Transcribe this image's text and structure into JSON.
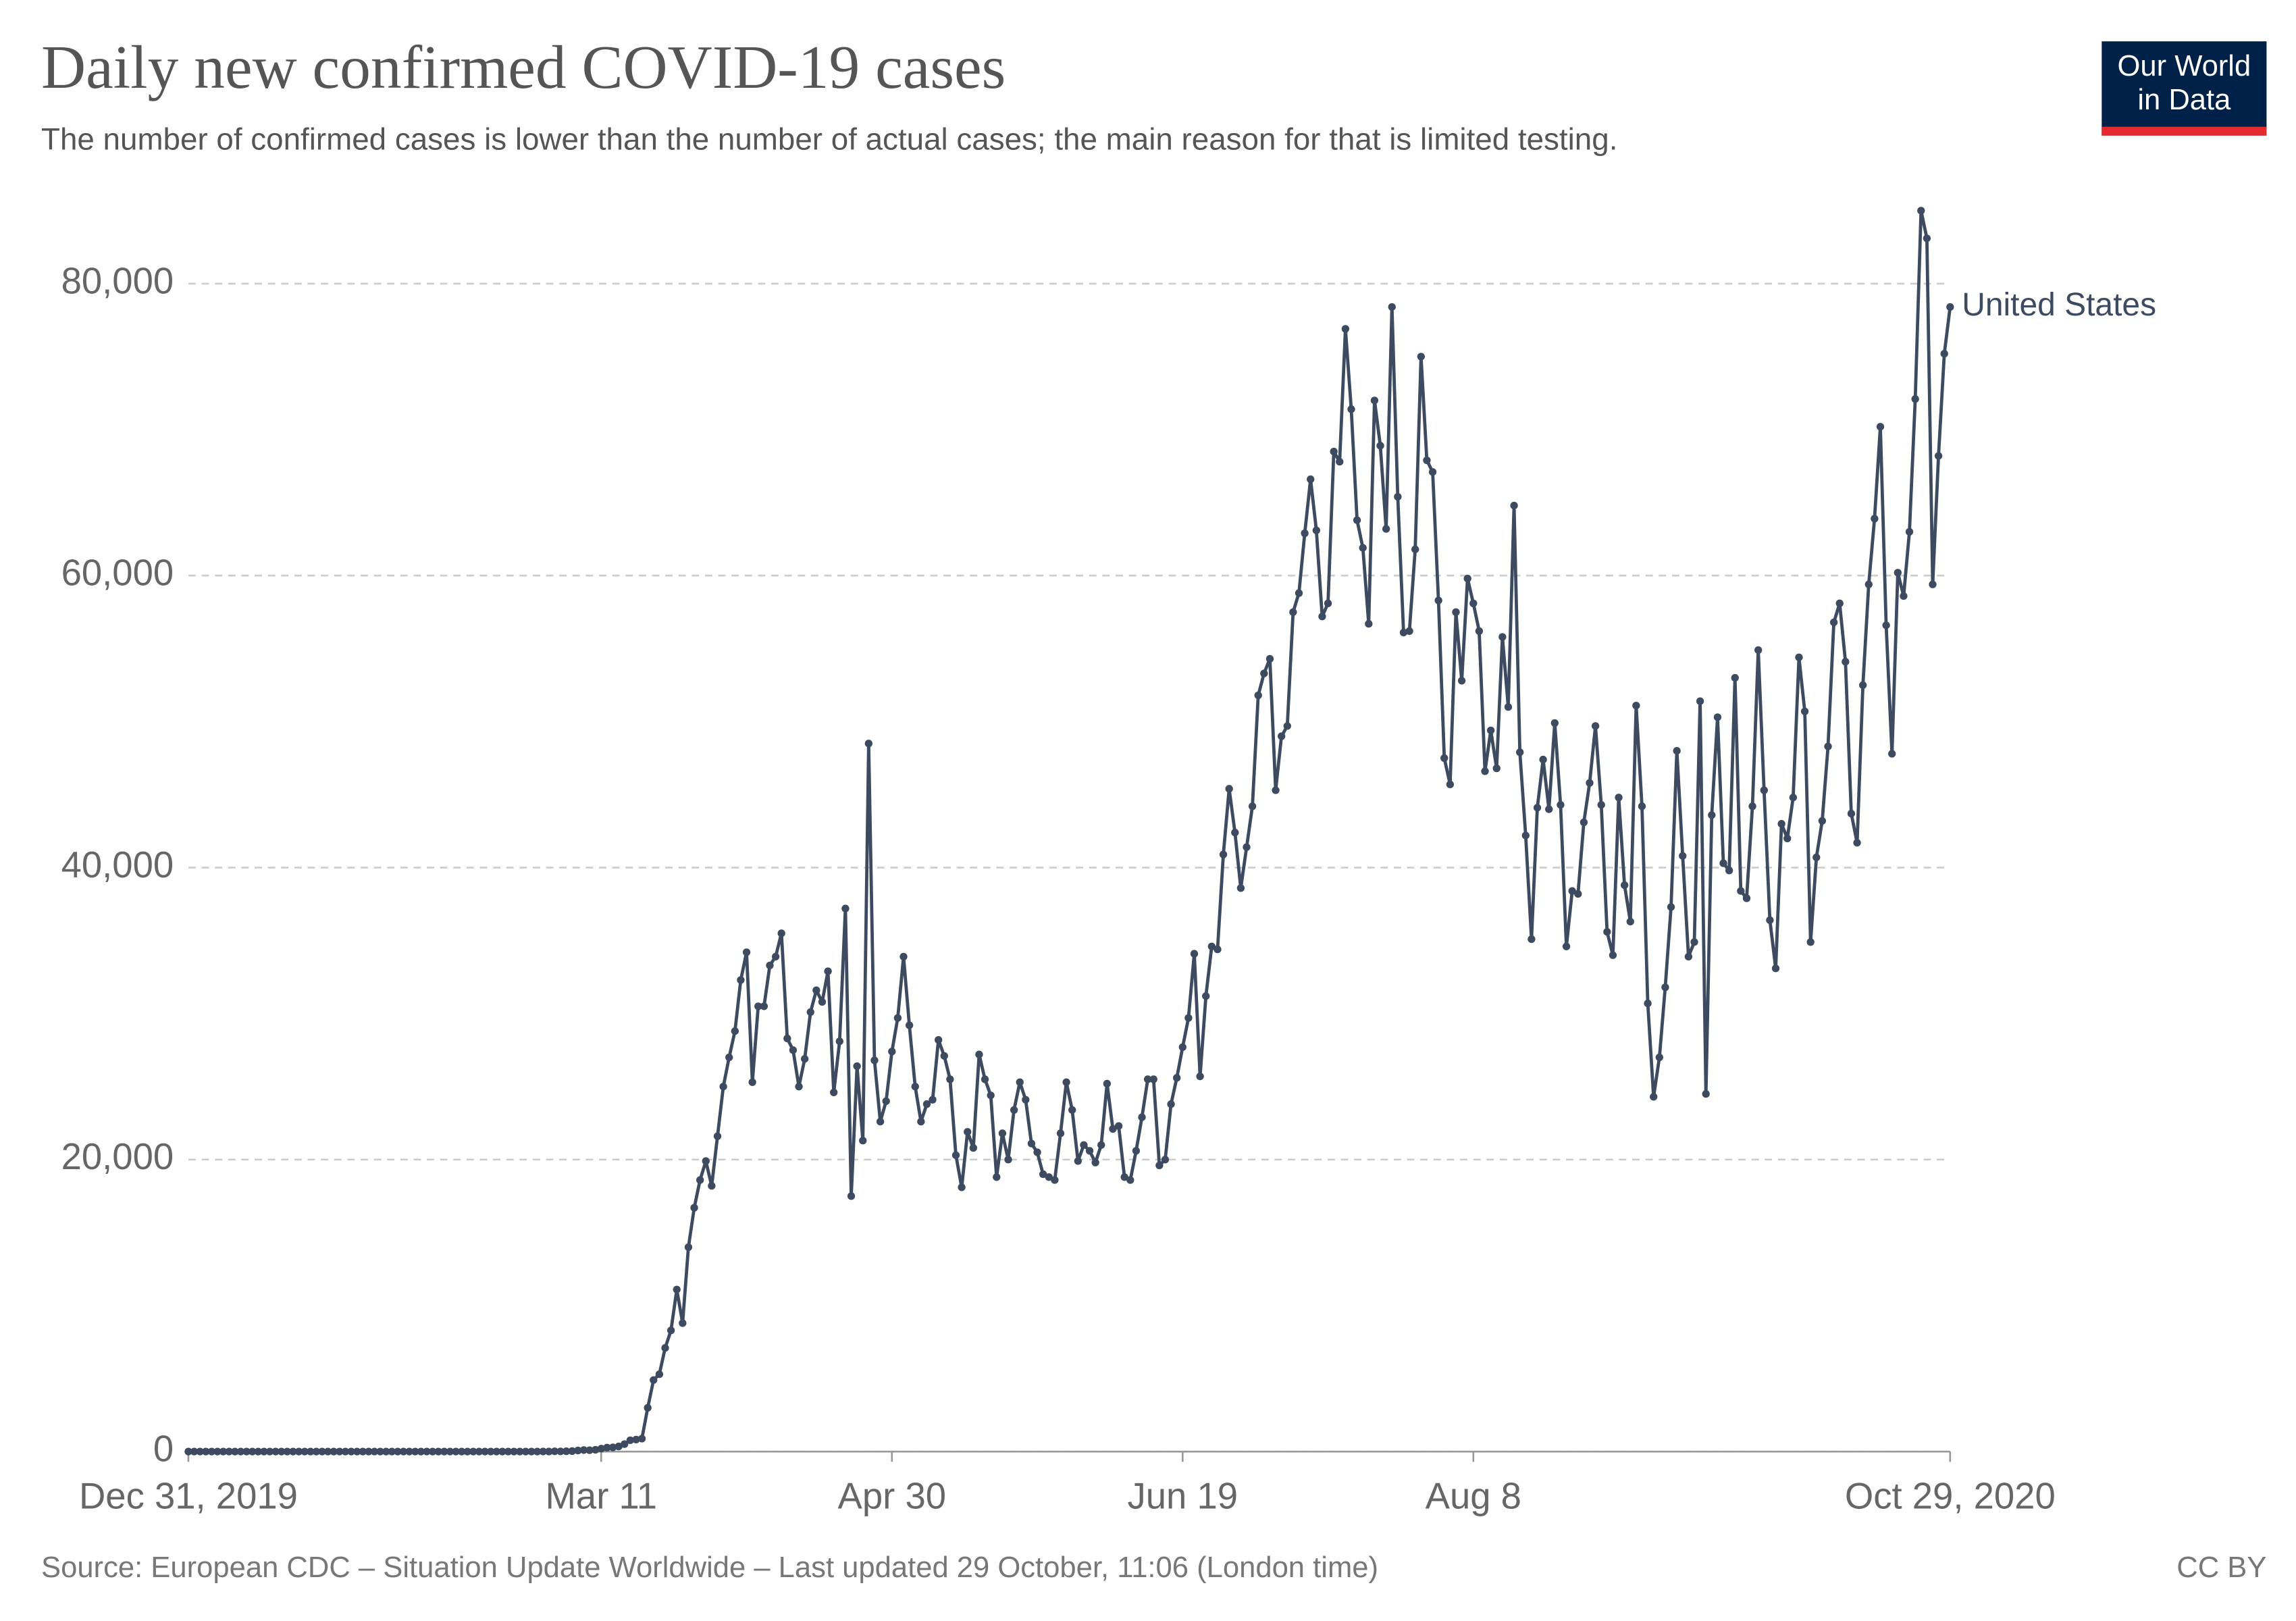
{
  "chart_data": {
    "type": "line",
    "title": "Daily new confirmed COVID-19 cases",
    "subtitle": "The number of confirmed cases is lower than the number of actual cases; the main reason for that is limited testing.",
    "x": [
      "2019-12-31",
      "2020-01-01",
      "2020-01-02",
      "2020-01-03",
      "2020-01-04",
      "2020-01-05",
      "2020-01-06",
      "2020-01-07",
      "2020-01-08",
      "2020-01-09",
      "2020-01-10",
      "2020-01-11",
      "2020-01-12",
      "2020-01-13",
      "2020-01-14",
      "2020-01-15",
      "2020-01-16",
      "2020-01-17",
      "2020-01-18",
      "2020-01-19",
      "2020-01-20",
      "2020-01-21",
      "2020-01-22",
      "2020-01-23",
      "2020-01-24",
      "2020-01-25",
      "2020-01-26",
      "2020-01-27",
      "2020-01-28",
      "2020-01-29",
      "2020-01-30",
      "2020-01-31",
      "2020-02-01",
      "2020-02-02",
      "2020-02-03",
      "2020-02-04",
      "2020-02-05",
      "2020-02-06",
      "2020-02-07",
      "2020-02-08",
      "2020-02-09",
      "2020-02-10",
      "2020-02-11",
      "2020-02-12",
      "2020-02-13",
      "2020-02-14",
      "2020-02-15",
      "2020-02-16",
      "2020-02-17",
      "2020-02-18",
      "2020-02-19",
      "2020-02-20",
      "2020-02-21",
      "2020-02-22",
      "2020-02-23",
      "2020-02-24",
      "2020-02-25",
      "2020-02-26",
      "2020-02-27",
      "2020-02-28",
      "2020-02-29",
      "2020-03-01",
      "2020-03-02",
      "2020-03-03",
      "2020-03-04",
      "2020-03-05",
      "2020-03-06",
      "2020-03-07",
      "2020-03-08",
      "2020-03-09",
      "2020-03-10",
      "2020-03-11",
      "2020-03-12",
      "2020-03-13",
      "2020-03-14",
      "2020-03-15",
      "2020-03-16",
      "2020-03-17",
      "2020-03-18",
      "2020-03-19",
      "2020-03-20",
      "2020-03-21",
      "2020-03-22",
      "2020-03-23",
      "2020-03-24",
      "2020-03-25",
      "2020-03-26",
      "2020-03-27",
      "2020-03-28",
      "2020-03-29",
      "2020-03-30",
      "2020-03-31",
      "2020-04-01",
      "2020-04-02",
      "2020-04-03",
      "2020-04-04",
      "2020-04-05",
      "2020-04-06",
      "2020-04-07",
      "2020-04-08",
      "2020-04-09",
      "2020-04-10",
      "2020-04-11",
      "2020-04-12",
      "2020-04-13",
      "2020-04-14",
      "2020-04-15",
      "2020-04-16",
      "2020-04-17",
      "2020-04-18",
      "2020-04-19",
      "2020-04-20",
      "2020-04-21",
      "2020-04-22",
      "2020-04-23",
      "2020-04-24",
      "2020-04-25",
      "2020-04-26",
      "2020-04-27",
      "2020-04-28",
      "2020-04-29",
      "2020-04-30",
      "2020-05-01",
      "2020-05-02",
      "2020-05-03",
      "2020-05-04",
      "2020-05-05",
      "2020-05-06",
      "2020-05-07",
      "2020-05-08",
      "2020-05-09",
      "2020-05-10",
      "2020-05-11",
      "2020-05-12",
      "2020-05-13",
      "2020-05-14",
      "2020-05-15",
      "2020-05-16",
      "2020-05-17",
      "2020-05-18",
      "2020-05-19",
      "2020-05-20",
      "2020-05-21",
      "2020-05-22",
      "2020-05-23",
      "2020-05-24",
      "2020-05-25",
      "2020-05-26",
      "2020-05-27",
      "2020-05-28",
      "2020-05-29",
      "2020-05-30",
      "2020-05-31",
      "2020-06-01",
      "2020-06-02",
      "2020-06-03",
      "2020-06-04",
      "2020-06-05",
      "2020-06-06",
      "2020-06-07",
      "2020-06-08",
      "2020-06-09",
      "2020-06-10",
      "2020-06-11",
      "2020-06-12",
      "2020-06-13",
      "2020-06-14",
      "2020-06-15",
      "2020-06-16",
      "2020-06-17",
      "2020-06-18",
      "2020-06-19",
      "2020-06-20",
      "2020-06-21",
      "2020-06-22",
      "2020-06-23",
      "2020-06-24",
      "2020-06-25",
      "2020-06-26",
      "2020-06-27",
      "2020-06-28",
      "2020-06-29",
      "2020-06-30",
      "2020-07-01",
      "2020-07-02",
      "2020-07-03",
      "2020-07-04",
      "2020-07-05",
      "2020-07-06",
      "2020-07-07",
      "2020-07-08",
      "2020-07-09",
      "2020-07-10",
      "2020-07-11",
      "2020-07-12",
      "2020-07-13",
      "2020-07-14",
      "2020-07-15",
      "2020-07-16",
      "2020-07-17",
      "2020-07-18",
      "2020-07-19",
      "2020-07-20",
      "2020-07-21",
      "2020-07-22",
      "2020-07-23",
      "2020-07-24",
      "2020-07-25",
      "2020-07-26",
      "2020-07-27",
      "2020-07-28",
      "2020-07-29",
      "2020-07-30",
      "2020-07-31",
      "2020-08-01",
      "2020-08-02",
      "2020-08-03",
      "2020-08-04",
      "2020-08-05",
      "2020-08-06",
      "2020-08-07",
      "2020-08-08",
      "2020-08-09",
      "2020-08-10",
      "2020-08-11",
      "2020-08-12",
      "2020-08-13",
      "2020-08-14",
      "2020-08-15",
      "2020-08-16",
      "2020-08-17",
      "2020-08-18",
      "2020-08-19",
      "2020-08-20",
      "2020-08-21",
      "2020-08-22",
      "2020-08-23",
      "2020-08-24",
      "2020-08-25",
      "2020-08-26",
      "2020-08-27",
      "2020-08-28",
      "2020-08-29",
      "2020-08-30",
      "2020-08-31",
      "2020-09-01",
      "2020-09-02",
      "2020-09-03",
      "2020-09-04",
      "2020-09-05",
      "2020-09-06",
      "2020-09-07",
      "2020-09-08",
      "2020-09-09",
      "2020-09-10",
      "2020-09-11",
      "2020-09-12",
      "2020-09-13",
      "2020-09-14",
      "2020-09-15",
      "2020-09-16",
      "2020-09-17",
      "2020-09-18",
      "2020-09-19",
      "2020-09-20",
      "2020-09-21",
      "2020-09-22",
      "2020-09-23",
      "2020-09-24",
      "2020-09-25",
      "2020-09-26",
      "2020-09-27",
      "2020-09-28",
      "2020-09-29",
      "2020-09-30",
      "2020-10-01",
      "2020-10-02",
      "2020-10-03",
      "2020-10-04",
      "2020-10-05",
      "2020-10-06",
      "2020-10-07",
      "2020-10-08",
      "2020-10-09",
      "2020-10-10",
      "2020-10-11",
      "2020-10-12",
      "2020-10-13",
      "2020-10-14",
      "2020-10-15",
      "2020-10-16",
      "2020-10-17",
      "2020-10-18",
      "2020-10-19",
      "2020-10-20",
      "2020-10-21",
      "2020-10-22",
      "2020-10-23",
      "2020-10-24",
      "2020-10-25",
      "2020-10-26",
      "2020-10-27",
      "2020-10-28",
      "2020-10-29"
    ],
    "series": [
      {
        "name": "United States",
        "color": "#3d4a5f",
        "values": [
          0,
          0,
          0,
          0,
          0,
          0,
          0,
          0,
          0,
          0,
          0,
          0,
          0,
          0,
          0,
          0,
          0,
          0,
          0,
          0,
          0,
          1,
          0,
          0,
          1,
          0,
          2,
          0,
          0,
          0,
          0,
          1,
          1,
          0,
          0,
          1,
          0,
          0,
          0,
          0,
          0,
          1,
          0,
          0,
          0,
          0,
          0,
          0,
          0,
          0,
          0,
          0,
          0,
          0,
          0,
          0,
          0,
          0,
          0,
          0,
          0,
          6,
          3,
          20,
          14,
          22,
          34,
          74,
          105,
          95,
          121,
          200,
          271,
          287,
          351,
          511,
          777,
          823,
          887,
          3000,
          4900,
          5300,
          7100,
          8300,
          11100,
          8800,
          14000,
          16700,
          18600,
          19900,
          18200,
          21600,
          25000,
          27000,
          28800,
          32300,
          34200,
          25300,
          30500,
          30500,
          33300,
          33900,
          35500,
          28300,
          27500,
          25000,
          26900,
          30100,
          31600,
          30800,
          32900,
          24600,
          28100,
          37200,
          17500,
          26400,
          21300,
          48500,
          26800,
          22600,
          24000,
          27400,
          29700,
          33900,
          29200,
          25000,
          22600,
          23800,
          24100,
          28200,
          27100,
          25500,
          20300,
          18100,
          21900,
          20800,
          27200,
          25500,
          24400,
          18800,
          21800,
          20000,
          23400,
          25300,
          24100,
          21100,
          20500,
          19000,
          18800,
          18600,
          21800,
          25300,
          23400,
          19900,
          21000,
          20600,
          19800,
          21000,
          25200,
          22100,
          22300,
          18800,
          18600,
          20600,
          22900,
          25500,
          25500,
          19600,
          20000,
          23800,
          25600,
          27700,
          29700,
          34100,
          25700,
          31200,
          34600,
          34400,
          40900,
          45400,
          42400,
          38600,
          41400,
          44200,
          51800,
          53300,
          54300,
          45300,
          49000,
          49700,
          57500,
          58800,
          62900,
          66600,
          63100,
          57200,
          58100,
          68500,
          67800,
          76900,
          71400,
          63800,
          61900,
          56700,
          72000,
          68900,
          63200,
          78400,
          65400,
          56100,
          56200,
          61800,
          75000,
          67900,
          67100,
          58300,
          47500,
          45700,
          57500,
          52800,
          59800,
          58100,
          56200,
          46600,
          49400,
          46800,
          55800,
          51000,
          64800,
          47900,
          42200,
          35100,
          44100,
          47400,
          44000,
          49900,
          44300,
          34600,
          38400,
          38200,
          43100,
          45800,
          49700,
          44300,
          35600,
          34000,
          44800,
          38800,
          36300,
          51100,
          44200,
          30700,
          24300,
          27000,
          31800,
          37300,
          48000,
          40800,
          33900,
          34900,
          51400,
          24500,
          43600,
          50300,
          40300,
          39800,
          53000,
          38400,
          37900,
          44200,
          54900,
          45300,
          36400,
          33100,
          43000,
          42000,
          44800,
          54400,
          50700,
          34900,
          40700,
          43200,
          48300,
          56800,
          58100,
          54100,
          43700,
          41700,
          52500,
          59400,
          63900,
          70200,
          56600,
          47800,
          60200,
          58600,
          63000,
          72100,
          85000,
          83100,
          59400,
          68200,
          75200,
          78400
        ]
      }
    ],
    "xlim": [
      "2019-12-31",
      "2020-10-29"
    ],
    "xticks": [
      {
        "value": "2019-12-31",
        "label": "Dec 31, 2019"
      },
      {
        "value": "2020-03-11",
        "label": "Mar 11"
      },
      {
        "value": "2020-04-30",
        "label": "Apr 30"
      },
      {
        "value": "2020-06-19",
        "label": "Jun 19"
      },
      {
        "value": "2020-08-08",
        "label": "Aug 8"
      },
      {
        "value": "2020-10-29",
        "label": "Oct 29, 2020"
      }
    ],
    "ylim": [
      0,
      85000
    ],
    "yticks": [
      0,
      {
        "value": 20000,
        "label": "20,000"
      },
      {
        "value": 40000,
        "label": "40,000"
      },
      {
        "value": 60000,
        "label": "60,000"
      },
      {
        "value": 80000,
        "label": "80,000"
      }
    ],
    "grid": true
  },
  "source": "Source: European CDC – Situation Update Worldwide – Last updated 29 October, 11:06 (London time)",
  "license": "CC BY",
  "logo": [
    "Our World",
    "in Data"
  ]
}
